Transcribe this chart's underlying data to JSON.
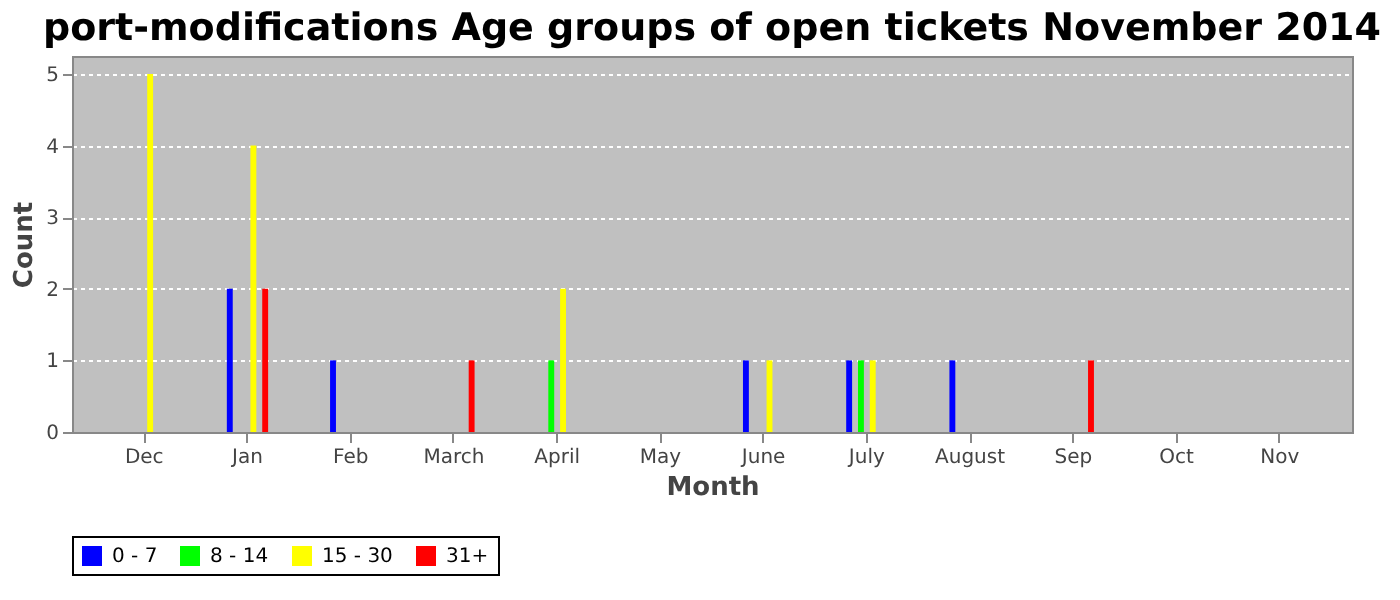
{
  "chart_data": {
    "type": "bar",
    "title": "port-modifications Age groups of open tickets November 2014",
    "xlabel": "Month",
    "ylabel": "Count",
    "categories": [
      "Dec",
      "Jan",
      "Feb",
      "March",
      "April",
      "May",
      "June",
      "July",
      "August",
      "Sep",
      "Oct",
      "Nov"
    ],
    "series": [
      {
        "name": "0 - 7",
        "color": "#0000ff",
        "values": [
          null,
          2,
          1,
          null,
          null,
          null,
          1,
          1,
          1,
          null,
          null,
          null
        ]
      },
      {
        "name": "8 - 14",
        "color": "#00ff00",
        "values": [
          null,
          null,
          null,
          null,
          1,
          null,
          null,
          1,
          null,
          null,
          null,
          null
        ]
      },
      {
        "name": "15 - 30",
        "color": "#ffff00",
        "values": [
          5,
          4,
          null,
          null,
          2,
          null,
          1,
          1,
          null,
          null,
          null,
          null
        ]
      },
      {
        "name": "31+",
        "color": "#ff0000",
        "values": [
          null,
          2,
          null,
          1,
          null,
          null,
          null,
          null,
          null,
          1,
          null,
          null
        ]
      }
    ],
    "ylim": [
      0,
      5.25
    ],
    "yticks": [
      0,
      1,
      2,
      3,
      4,
      5
    ],
    "grid": "y",
    "legend": "bottom"
  }
}
